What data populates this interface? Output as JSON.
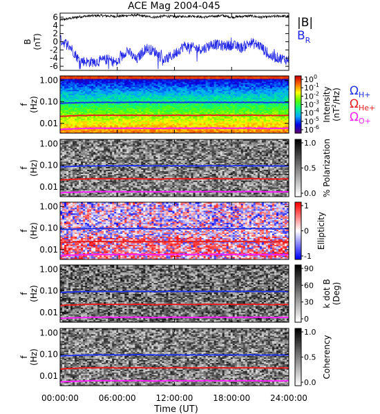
{
  "title": "ACE Mag 2004-045",
  "time_axis": {
    "label": "Time (UT)",
    "ticks": [
      "00:00:00",
      "06:00:00",
      "12:00:00",
      "18:00:00",
      "24:00:00"
    ],
    "range_hours": [
      0,
      24
    ]
  },
  "colors": {
    "B_total": "#000000",
    "B_R": "#1e23e6",
    "f_H": "#1e32e6",
    "f_He": "#e61e1e",
    "f_O": "#ff1eff"
  },
  "legend_top": {
    "B_total": "|B|",
    "B_R": "B",
    "B_R_sub": "R"
  },
  "legend_gyro": [
    {
      "sym": "Ω",
      "sub": "H+",
      "color": "#1e32e6"
    },
    {
      "sym": "Ω",
      "sub": "He+",
      "color": "#e61e1e"
    },
    {
      "sym": "Ω",
      "sub": "O+",
      "color": "#ff1eff"
    }
  ],
  "chart_data": [
    {
      "type": "line",
      "panel": "B",
      "ylabel": "B",
      "yunit": "(nT)",
      "ylim": [
        -7,
        7
      ],
      "yticks": [
        "6",
        "4",
        "2",
        "0",
        "-2",
        "-4",
        "-6"
      ],
      "series": [
        {
          "name": "|B|",
          "x_hours": [
            0,
            1,
            2,
            3,
            4,
            5,
            6,
            7,
            8,
            9,
            10,
            11,
            12,
            13,
            14,
            15,
            16,
            17,
            18,
            19,
            20,
            21,
            22,
            23,
            24
          ],
          "values": [
            5.3,
            5.7,
            6.1,
            6.3,
            6.4,
            6.3,
            6.2,
            6.4,
            6.5,
            6.2,
            6.0,
            6.3,
            6.1,
            6.2,
            6.3,
            6.0,
            6.2,
            6.4,
            6.0,
            6.2,
            6.3,
            6.0,
            6.1,
            6.3,
            6.2
          ]
        },
        {
          "name": "B_R",
          "x_hours": [
            0,
            1,
            2,
            3,
            4,
            5,
            6,
            7,
            8,
            9,
            10,
            11,
            12,
            13,
            14,
            15,
            16,
            17,
            18,
            19,
            20,
            21,
            22,
            23,
            24
          ],
          "values": [
            0.5,
            -1.0,
            -4.5,
            -5.0,
            -4.8,
            -4.3,
            -5.2,
            -2.0,
            -4.5,
            -1.5,
            -2.5,
            -4.5,
            -3.0,
            -1.0,
            -1.5,
            -1.8,
            -0.5,
            -1.0,
            -0.8,
            -1.5,
            -0.2,
            -1.0,
            -3.5,
            -4.0,
            -4.5
          ]
        }
      ]
    },
    {
      "type": "heatmap",
      "panel": "intensity",
      "ylabel": "f",
      "yunit": "(Hz)",
      "yscale": "log",
      "yticks": [
        "1.00",
        "0.10",
        "0.01"
      ],
      "colorbar": {
        "label": "Intensity",
        "unit_pre": "(nT",
        "unit_sup": "2",
        "unit_post": "/Hz)",
        "ticks": [
          "10",
          "10",
          "10",
          "10",
          "10",
          "10",
          "10"
        ],
        "tick_sups": [
          "0",
          "-1",
          "-2",
          "-3",
          "-4",
          "-5",
          "-6"
        ]
      }
    },
    {
      "type": "heatmap",
      "panel": "polarization",
      "ylabel": "f",
      "yunit": "(Hz)",
      "yscale": "log",
      "yticks": [
        "1.00",
        "0.10",
        "0.01"
      ],
      "colorbar": {
        "label": "% Polarization",
        "ticks": [
          "1.0",
          "0.5",
          "0.0"
        ]
      }
    },
    {
      "type": "heatmap",
      "panel": "ellipticity",
      "ylabel": "f",
      "yunit": "(Hz)",
      "yscale": "log",
      "yticks": [
        "1.00",
        "0.10",
        "0.01"
      ],
      "colorbar": {
        "label": "Ellipticity",
        "ticks": [
          "1",
          "0",
          "-1"
        ]
      }
    },
    {
      "type": "heatmap",
      "panel": "kdotb",
      "ylabel": "f",
      "yunit": "(Hz)",
      "yscale": "log",
      "yticks": [
        "1.00",
        "0.10",
        "0.01"
      ],
      "colorbar": {
        "label": "k dot B",
        "label2": "(Deg)",
        "ticks": [
          "90",
          "60",
          "30",
          "0"
        ]
      }
    },
    {
      "type": "heatmap",
      "panel": "coherency",
      "ylabel": "f",
      "yunit": "(Hz)",
      "yscale": "log",
      "yticks": [
        "1.00",
        "0.10",
        "0.01"
      ],
      "colorbar": {
        "label": "Coherency",
        "ticks": [
          "1.0",
          "0.5",
          "0.0"
        ]
      }
    }
  ],
  "gyrofrequency_lines_hz": {
    "x_hours": [
      0,
      2,
      4,
      6,
      8,
      10,
      12,
      14,
      16,
      18,
      20,
      22,
      24
    ],
    "H": [
      0.085,
      0.092,
      0.095,
      0.094,
      0.096,
      0.093,
      0.095,
      0.094,
      0.095,
      0.094,
      0.095,
      0.093,
      0.094
    ],
    "He": [
      0.021,
      0.023,
      0.024,
      0.0235,
      0.024,
      0.023,
      0.024,
      0.0235,
      0.024,
      0.0235,
      0.024,
      0.023,
      0.0235
    ],
    "O": [
      0.0053,
      0.0057,
      0.006,
      0.0059,
      0.006,
      0.0058,
      0.006,
      0.0059,
      0.006,
      0.0059,
      0.006,
      0.0058,
      0.0059
    ]
  }
}
